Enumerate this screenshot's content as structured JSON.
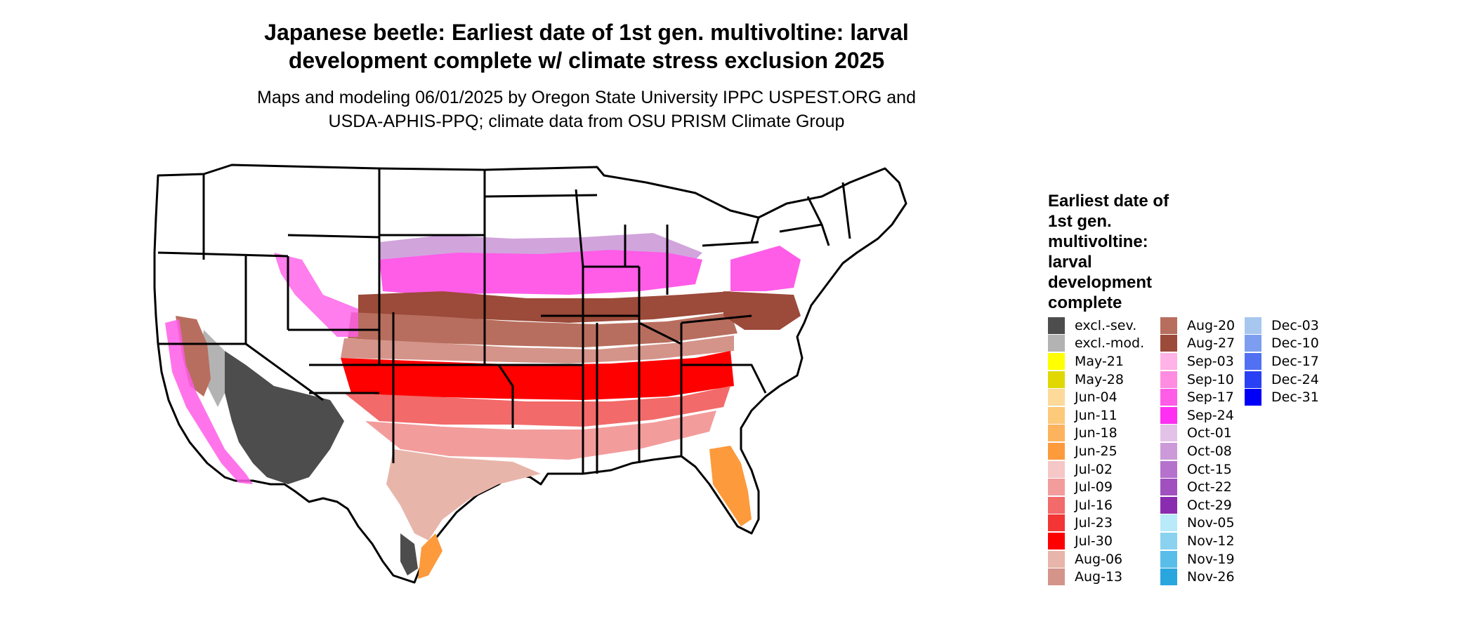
{
  "title_line1": "Japanese beetle: Earliest date of 1st gen. multivoltine: larval",
  "title_line2": "development complete w/ climate stress exclusion 2025",
  "subtitle_line1": "Maps and modeling 06/01/2025 by Oregon State University IPPC USPEST.ORG and",
  "subtitle_line2": "USDA-APHIS-PPQ; climate data from OSU PRISM Climate Group",
  "legend": {
    "title": "Earliest date of 1st gen. multivoltine: larval development complete",
    "items": [
      {
        "label": "excl.-sev.",
        "color": "#4d4d4d"
      },
      {
        "label": "excl.-mod.",
        "color": "#b3b3b3"
      },
      {
        "label": "May-21",
        "color": "#ffff00"
      },
      {
        "label": "May-28",
        "color": "#e0d800"
      },
      {
        "label": "Jun-04",
        "color": "#fdd99a"
      },
      {
        "label": "Jun-11",
        "color": "#fdc97a"
      },
      {
        "label": "Jun-18",
        "color": "#fdb35d"
      },
      {
        "label": "Jun-25",
        "color": "#fd9a3c"
      },
      {
        "label": "Jul-02",
        "color": "#f5c7c7"
      },
      {
        "label": "Jul-09",
        "color": "#f39c9c"
      },
      {
        "label": "Jul-16",
        "color": "#f26a6a"
      },
      {
        "label": "Jul-23",
        "color": "#f33535"
      },
      {
        "label": "Jul-30",
        "color": "#ff0000"
      },
      {
        "label": "Aug-06",
        "color": "#e8b5aa"
      },
      {
        "label": "Aug-13",
        "color": "#d4948a"
      },
      {
        "label": "Aug-20",
        "color": "#b86e5e"
      },
      {
        "label": "Aug-27",
        "color": "#9c4a3a"
      },
      {
        "label": "Sep-03",
        "color": "#ffb3e6"
      },
      {
        "label": "Sep-10",
        "color": "#ff8ce0"
      },
      {
        "label": "Sep-17",
        "color": "#ff5ce8"
      },
      {
        "label": "Sep-24",
        "color": "#ff2ef2"
      },
      {
        "label": "Oct-01",
        "color": "#e3c2e8"
      },
      {
        "label": "Oct-08",
        "color": "#cc9ad8"
      },
      {
        "label": "Oct-15",
        "color": "#b572cc"
      },
      {
        "label": "Oct-22",
        "color": "#a050bf"
      },
      {
        "label": "Oct-29",
        "color": "#8a2cb0"
      },
      {
        "label": "Nov-05",
        "color": "#b8eafa"
      },
      {
        "label": "Nov-12",
        "color": "#8ad2f0"
      },
      {
        "label": "Nov-19",
        "color": "#58bde8"
      },
      {
        "label": "Nov-26",
        "color": "#2aa6df"
      },
      {
        "label": "Dec-03",
        "color": "#a7c7ee"
      },
      {
        "label": "Dec-10",
        "color": "#7d9ef0"
      },
      {
        "label": "Dec-17",
        "color": "#5270f2"
      },
      {
        "label": "Dec-24",
        "color": "#2a40f5"
      },
      {
        "label": "Dec-31",
        "color": "#0000f8"
      }
    ]
  }
}
